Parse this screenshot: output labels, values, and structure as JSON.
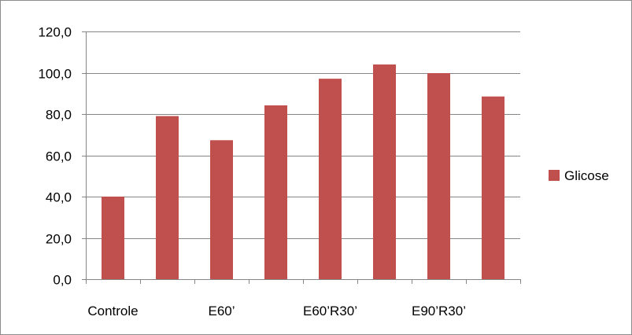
{
  "chart_data": {
    "type": "bar",
    "categories": [
      "Controle",
      "",
      "E60’",
      "",
      "E60’R30’",
      "",
      "E90’R30’",
      ""
    ],
    "series": [
      {
        "name": "Glicose",
        "color": "#c0504d",
        "values": [
          40.0,
          79.0,
          67.3,
          84.2,
          97.1,
          104.0,
          99.8,
          88.5
        ]
      }
    ],
    "ylim": [
      0,
      120
    ],
    "yticks": [
      0,
      20,
      40,
      60,
      80,
      100,
      120
    ],
    "ytick_labels": [
      "0,0",
      "20,0",
      "40,0",
      "60,0",
      "80,0",
      "100,0",
      "120,0"
    ],
    "grid": true,
    "legend": "right",
    "title": "",
    "xlabel": "",
    "ylabel": ""
  }
}
